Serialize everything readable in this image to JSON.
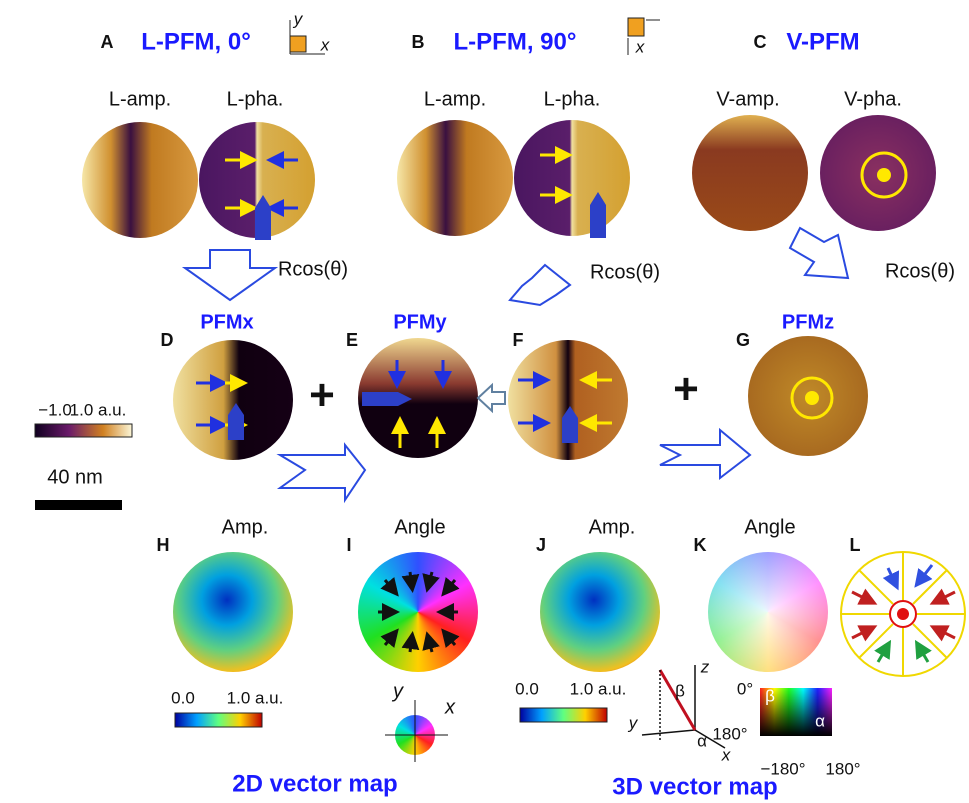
{
  "panels": [
    {
      "letter": "A",
      "title": "L-PFM, 0°",
      "labels": [
        "L-amp.",
        "L-pha."
      ]
    },
    {
      "letter": "B",
      "title": "L-PFM, 90°",
      "labels": [
        "L-amp.",
        "L-pha."
      ]
    },
    {
      "letter": "C",
      "title": "V-PFM",
      "labels": [
        "V-amp.",
        "V-pha."
      ]
    },
    {
      "letter": "D",
      "title": "PFMx"
    },
    {
      "letter": "E",
      "title": "PFMy"
    },
    {
      "letter": "F"
    },
    {
      "letter": "G",
      "title": "PFMz"
    },
    {
      "letter": "H",
      "title": "Amp."
    },
    {
      "letter": "I",
      "title": "Angle"
    },
    {
      "letter": "J",
      "title": "Amp."
    },
    {
      "letter": "K",
      "title": "Angle"
    },
    {
      "letter": "L"
    }
  ],
  "icon_labels": {
    "a_y": "y",
    "a_x": "x",
    "b_x": "x"
  },
  "arrow_labels": [
    "Rcos(θ)",
    "Rcos(θ)",
    "Rcos(θ)"
  ],
  "operators": [
    "+",
    "+"
  ],
  "colorbar_pfm": {
    "min": "−1.0",
    "max": "1.0 a.u."
  },
  "scale_bar": "40 nm",
  "colorbar_2d": {
    "min": "0.0",
    "max": "1.0 a.u."
  },
  "colorbar_3d": {
    "min": "0.0",
    "max": "1.0 a.u."
  },
  "legend_2d": {
    "y": "y",
    "x": "x"
  },
  "legend_3d": {
    "z": "z",
    "beta": "β",
    "y": "y",
    "alpha": "α",
    "angle": "180°",
    "x": "x"
  },
  "color_key_3d": {
    "top": "0°",
    "beta": "β",
    "alpha": "α",
    "min": "−180°",
    "max": "180°"
  },
  "captions": [
    "2D vector map",
    "3D vector map"
  ]
}
